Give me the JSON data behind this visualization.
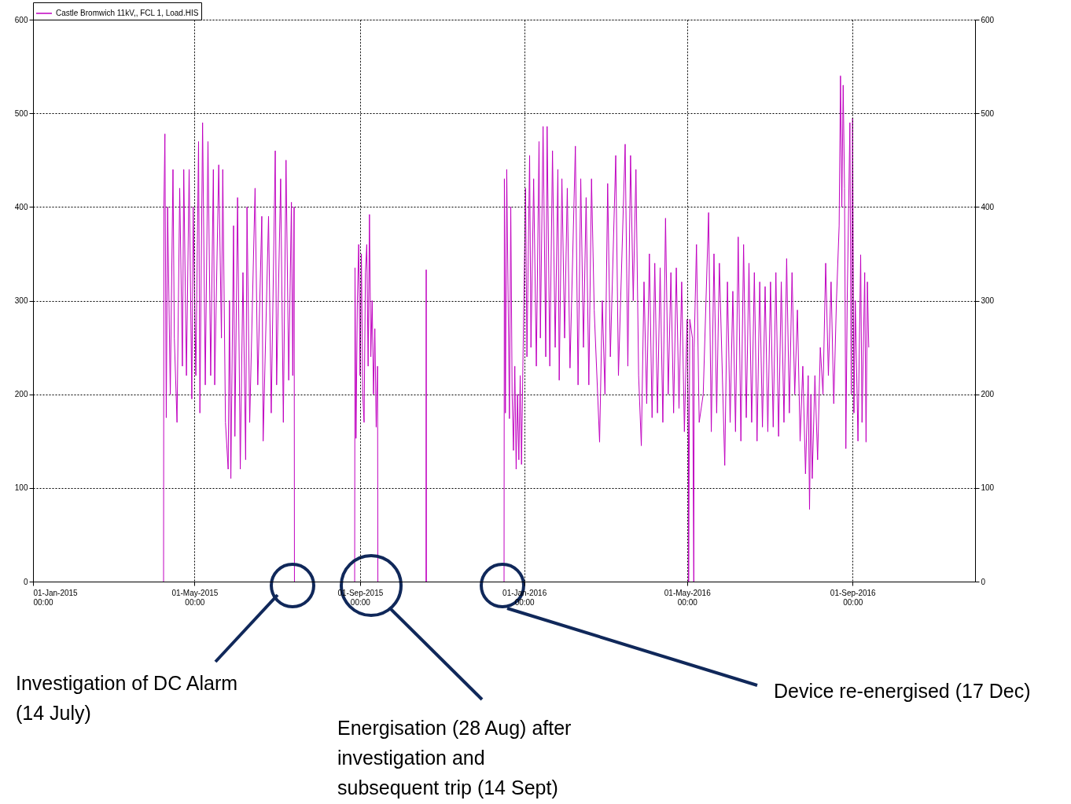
{
  "chart_data": {
    "type": "line",
    "xlim": [
      "2015-01-01",
      "2016-12-01"
    ],
    "xticks": [
      {
        "value": "2015-01-01",
        "label": "01-Jan-2015\n00:00"
      },
      {
        "value": "2015-05-01",
        "label": "01-May-2015\n00:00"
      },
      {
        "value": "2015-09-01",
        "label": "01-Sep-2015\n00:00"
      },
      {
        "value": "2016-01-01",
        "label": "01-Jan-2016\n00:00"
      },
      {
        "value": "2016-05-01",
        "label": "01-May-2016\n00:00"
      },
      {
        "value": "2016-09-01",
        "label": "01-Sep-2016\n00:00"
      }
    ],
    "ylim": [
      0,
      600
    ],
    "yticks": [
      0,
      100,
      200,
      300,
      400,
      500,
      600
    ],
    "y2lim": [
      0,
      600
    ],
    "y2ticks": [
      0,
      100,
      200,
      300,
      400,
      500,
      600
    ],
    "grid": true,
    "legend": "top left",
    "annotations": [
      "Investigation of DC Alarm\n(14 July)",
      "Energisation (28 Aug) after\ninvestigation and\nsubsequent trip (14 Sept)",
      "Device re-energised (17 Dec)"
    ],
    "series": [
      {
        "name": "Castle Bromwich 11kV,, FCL 1, Load.HIS",
        "color": "#c000c0",
        "x": [
          "2015-04-08T00:00",
          "2015-04-08T06:00",
          "2015-04-09",
          "2015-04-10",
          "2015-04-11",
          "2015-04-13",
          "2015-04-15",
          "2015-04-16",
          "2015-04-18",
          "2015-04-20",
          "2015-04-22",
          "2015-04-23",
          "2015-04-25",
          "2015-04-27",
          "2015-04-29",
          "2015-04-30",
          "2015-05-02",
          "2015-05-04",
          "2015-05-05",
          "2015-05-07",
          "2015-05-09",
          "2015-05-11",
          "2015-05-13",
          "2015-05-15",
          "2015-05-16",
          "2015-05-19",
          "2015-05-21",
          "2015-05-22",
          "2015-05-24",
          "2015-05-26",
          "2015-05-27",
          "2015-05-28",
          "2015-05-30",
          "2015-05-31",
          "2015-06-02",
          "2015-06-04",
          "2015-06-06",
          "2015-06-08",
          "2015-06-09",
          "2015-06-11",
          "2015-06-15",
          "2015-06-17",
          "2015-06-20",
          "2015-06-21",
          "2015-06-25",
          "2015-06-27",
          "2015-06-30",
          "2015-07-01",
          "2015-07-04",
          "2015-07-06",
          "2015-07-08",
          "2015-07-10",
          "2015-07-12",
          "2015-07-13",
          "2015-07-14T00:00",
          "2015-07-14T06:00",
          "2015-08-01",
          "2015-08-28T00:00",
          "2015-08-28T06:00",
          "2015-08-29",
          "2015-08-30",
          "2015-08-31",
          "2015-09-01",
          "2015-09-02",
          "2015-09-03",
          "2015-09-04",
          "2015-09-05",
          "2015-09-06",
          "2015-09-07",
          "2015-09-08",
          "2015-09-09",
          "2015-09-10",
          "2015-09-11",
          "2015-09-12",
          "2015-09-13",
          "2015-09-14T00:00",
          "2015-09-14T06:00",
          "2015-10-01",
          "2015-10-20T00:00",
          "2015-10-20T04:00",
          "2015-10-20T08:00",
          "2015-11-20",
          "2015-12-17T00:00",
          "2015-12-17T06:00",
          "2015-12-18",
          "2015-12-19",
          "2015-12-21",
          "2015-12-22",
          "2015-12-23",
          "2015-12-24",
          "2015-12-25",
          "2015-12-26",
          "2015-12-27",
          "2015-12-28",
          "2015-12-29",
          "2015-12-30",
          "2015-12-31",
          "2016-01-02",
          "2016-01-03",
          "2016-01-05",
          "2016-01-06",
          "2016-01-08",
          "2016-01-10",
          "2016-01-12",
          "2016-01-13",
          "2016-01-15",
          "2016-01-17",
          "2016-01-18",
          "2016-01-20",
          "2016-01-22",
          "2016-01-24",
          "2016-01-26",
          "2016-01-27",
          "2016-01-29",
          "2016-01-31",
          "2016-02-02",
          "2016-02-04",
          "2016-02-08",
          "2016-02-10",
          "2016-02-12",
          "2016-02-14",
          "2016-02-16",
          "2016-02-18",
          "2016-02-20",
          "2016-02-22",
          "2016-02-26",
          "2016-02-28",
          "2016-03-01",
          "2016-03-03",
          "2016-03-05",
          "2016-03-09",
          "2016-03-11",
          "2016-03-16",
          "2016-03-18",
          "2016-03-20",
          "2016-03-22",
          "2016-03-24",
          "2016-03-26",
          "2016-03-28",
          "2016-03-30",
          "2016-04-01",
          "2016-04-03",
          "2016-04-05",
          "2016-04-07",
          "2016-04-09",
          "2016-04-11",
          "2016-04-13",
          "2016-04-15",
          "2016-04-17",
          "2016-04-19",
          "2016-04-21",
          "2016-04-23",
          "2016-04-25",
          "2016-04-27",
          "2016-04-29",
          "2016-05-01",
          "2016-05-02T00:00",
          "2016-05-02T04:00",
          "2016-05-03",
          "2016-05-05",
          "2016-05-06T00:00",
          "2016-05-06T06:00",
          "2016-05-08",
          "2016-05-10",
          "2016-05-13",
          "2016-05-17",
          "2016-05-19",
          "2016-05-21",
          "2016-05-23",
          "2016-05-25",
          "2016-05-29",
          "2016-05-31",
          "2016-06-02",
          "2016-06-04",
          "2016-06-06",
          "2016-06-08",
          "2016-06-10",
          "2016-06-12",
          "2016-06-14",
          "2016-06-16",
          "2016-06-18",
          "2016-06-20",
          "2016-06-22",
          "2016-06-24",
          "2016-06-26",
          "2016-06-28",
          "2016-06-30",
          "2016-07-02",
          "2016-07-04",
          "2016-07-06",
          "2016-07-08",
          "2016-07-10",
          "2016-07-12",
          "2016-07-14",
          "2016-07-16",
          "2016-07-18",
          "2016-07-20",
          "2016-07-22",
          "2016-07-24",
          "2016-07-26",
          "2016-07-28",
          "2016-07-30",
          "2016-07-31",
          "2016-08-01",
          "2016-08-02",
          "2016-08-04",
          "2016-08-06",
          "2016-08-08",
          "2016-08-10",
          "2016-08-12",
          "2016-08-14",
          "2016-08-16",
          "2016-08-18",
          "2016-08-20",
          "2016-08-22",
          "2016-08-23",
          "2016-08-24",
          "2016-08-25",
          "2016-08-26",
          "2016-08-27",
          "2016-08-28",
          "2016-08-30",
          "2016-08-31",
          "2016-09-01",
          "2016-09-02",
          "2016-09-03",
          "2016-09-05",
          "2016-09-07",
          "2016-09-08",
          "2016-09-10",
          "2016-09-11",
          "2016-09-12",
          "2016-09-13"
        ],
        "values": [
          0,
          400,
          478,
          175,
          400,
          200,
          440,
          260,
          170,
          420,
          230,
          440,
          220,
          440,
          195,
          400,
          220,
          470,
          180,
          490,
          210,
          470,
          220,
          440,
          210,
          445,
          260,
          440,
          170,
          120,
          300,
          110,
          380,
          155,
          410,
          120,
          330,
          130,
          400,
          170,
          420,
          210,
          390,
          150,
          390,
          180,
          460,
          210,
          430,
          170,
          450,
          215,
          405,
          220,
          400,
          0,
          null,
          0,
          335,
          153,
          300,
          360,
          220,
          350,
          200,
          170,
          330,
          360,
          230,
          392,
          240,
          300,
          200,
          270,
          165,
          230,
          0,
          null,
          0,
          333,
          0,
          null,
          0,
          430,
          180,
          440,
          174,
          400,
          200,
          140,
          230,
          120,
          200,
          130,
          220,
          125,
          230,
          420,
          240,
          455,
          250,
          430,
          230,
          470,
          260,
          486,
          240,
          486,
          230,
          460,
          250,
          440,
          215,
          430,
          260,
          420,
          228,
          465,
          210,
          430,
          250,
          410,
          210,
          430,
          290,
          149,
          300,
          200,
          425,
          240,
          455,
          220,
          467,
          230,
          455,
          300,
          440,
          220,
          145,
          320,
          190,
          350,
          175,
          340,
          180,
          335,
          170,
          388,
          200,
          330,
          180,
          335,
          185,
          320,
          160,
          280,
          150,
          0,
          280,
          260,
          0,
          250,
          360,
          170,
          200,
          394,
          160,
          350,
          180,
          340,
          124,
          320,
          170,
          310,
          160,
          368,
          150,
          360,
          175,
          340,
          170,
          330,
          150,
          320,
          165,
          315,
          160,
          320,
          165,
          330,
          155,
          320,
          170,
          345,
          180,
          330,
          200,
          290,
          150,
          230,
          115,
          220,
          77,
          200,
          110,
          220,
          130,
          250,
          200,
          340,
          220,
          320,
          190,
          300,
          380,
          540,
          400,
          530,
          420,
          142,
          300,
          490,
          200,
          495,
          180,
          300,
          150,
          349,
          170,
          330,
          149,
          320,
          250
        ]
      }
    ]
  }
}
